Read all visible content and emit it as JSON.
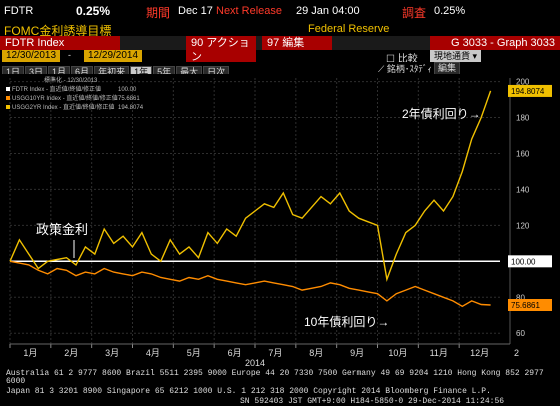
{
  "header": {
    "ticker": "FDTR",
    "value": "0.25%",
    "period_label": "期間",
    "date": "Dec 17",
    "next_release": "Next Release",
    "next_date": "29 Jan 04:00",
    "survey_label": "調査",
    "survey_value": "0.25%",
    "subtitle": "FOMC金利誘導目標",
    "source": "Federal Reserve"
  },
  "toolbar": {
    "index_name": "FDTR Index",
    "actions_label": "90 アクション",
    "edit_label": "97 編集",
    "graph_label": "G 3033 - Graph 3033",
    "start_date": "12/30/2013",
    "end_date": "12/29/2014",
    "compare_label": "比較",
    "local_ccy_label": "現地通貨",
    "period_buttons": [
      "1日",
      "3日",
      "1月",
      "6月",
      "年初来",
      "1年",
      "5年",
      "最大",
      "日次"
    ],
    "active_period": "1年",
    "tools_label": "銘柄･ｽﾀﾃﾞｨ",
    "edit_chart_label": "編集"
  },
  "legend": {
    "title": "標準化 - 12/30/2013",
    "entries": [
      {
        "text": "FDTR Index - 直近値/終値/修正値",
        "value": "100.00",
        "color": "#ffffff"
      },
      {
        "text": "USGG10YR Index - 直近値/終値/修正値",
        "value": "75.6861",
        "color": "#ff8c00"
      },
      {
        "text": "USGG2YR Index - 直近値/終値/修正値",
        "value": "194.8074",
        "color": "#f0c000"
      }
    ]
  },
  "annotations": {
    "policy": "政策金利",
    "ten_year": "10年債利回り→",
    "two_year": "2年債利回り→"
  },
  "colors": {
    "fdtr": "#ffffff",
    "ten_year": "#ff8c00",
    "two_year": "#f0c000"
  },
  "footer": {
    "line1": "Australia 61 2 9777 8600 Brazil 5511 2395 9000 Europe 44 20 7330 7500 Germany 49 69 9204 1210 Hong Kong 852 2977 6000",
    "line2": "Japan 81 3 3201 8900        Singapore 65 6212 1000        U.S. 1 212 318 2000        Copyright 2014 Bloomberg Finance L.P.",
    "line3": "SN 592403 JST  GMT+9:00 H184-5850-0 29-Dec-2014 11:24:56"
  },
  "chart_data": {
    "type": "line",
    "xlabel": "2014",
    "x_ticks": [
      "1月",
      "2月",
      "3月",
      "4月",
      "5月",
      "6月",
      "7月",
      "8月",
      "9月",
      "10月",
      "11月",
      "12月"
    ],
    "x_edge_label": "2",
    "xlim": [
      0,
      52
    ],
    "ylim": [
      54,
      202
    ],
    "y_ticks": [
      60,
      80,
      100,
      120,
      140,
      160,
      180,
      200
    ],
    "grid": true,
    "last_value_labels": [
      "194.8074",
      "100.00",
      "75.6861"
    ],
    "series": [
      {
        "name": "FDTR Index",
        "color": "#ffffff",
        "x": [
          0,
          52
        ],
        "y": [
          100,
          100
        ]
      },
      {
        "name": "USGG10YR Index",
        "color": "#ff8c00",
        "x": [
          0,
          1,
          2,
          3,
          4,
          5,
          6,
          7,
          8,
          9,
          10,
          11,
          12,
          13,
          14,
          15,
          16,
          17,
          18,
          19,
          20,
          21,
          22,
          23,
          24,
          25,
          26,
          27,
          28,
          29,
          30,
          31,
          32,
          33,
          34,
          35,
          36,
          37,
          38,
          39,
          40,
          41,
          42,
          43,
          44,
          45,
          46,
          47,
          48,
          49,
          50,
          51
        ],
        "y": [
          100,
          99,
          98,
          95,
          93,
          96,
          95,
          92,
          94,
          93,
          96,
          94,
          93,
          92,
          94,
          93,
          91,
          90,
          89,
          91,
          90,
          92,
          90,
          89,
          88,
          87,
          88,
          89,
          88,
          87,
          86,
          84,
          85,
          86,
          88,
          87,
          85,
          84,
          83,
          82,
          78,
          82,
          84,
          86,
          84,
          82,
          80,
          78,
          75,
          78,
          76,
          75.7
        ]
      },
      {
        "name": "USGG2YR Index",
        "color": "#f0c000",
        "x": [
          0,
          1,
          2,
          3,
          4,
          5,
          6,
          7,
          8,
          9,
          10,
          11,
          12,
          13,
          14,
          15,
          16,
          17,
          18,
          19,
          20,
          21,
          22,
          23,
          24,
          25,
          26,
          27,
          28,
          29,
          30,
          31,
          32,
          33,
          34,
          35,
          36,
          37,
          38,
          39,
          40,
          41,
          42,
          43,
          44,
          45,
          46,
          47,
          48,
          49,
          50,
          51
        ],
        "y": [
          100,
          112,
          104,
          96,
          100,
          101,
          102,
          98,
          108,
          104,
          118,
          110,
          114,
          108,
          116,
          104,
          100,
          112,
          104,
          108,
          102,
          116,
          110,
          118,
          114,
          124,
          128,
          132,
          130,
          138,
          126,
          124,
          130,
          136,
          132,
          138,
          128,
          124,
          122,
          120,
          90,
          104,
          116,
          120,
          128,
          134,
          128,
          136,
          150,
          168,
          180,
          194.8
        ]
      }
    ]
  }
}
